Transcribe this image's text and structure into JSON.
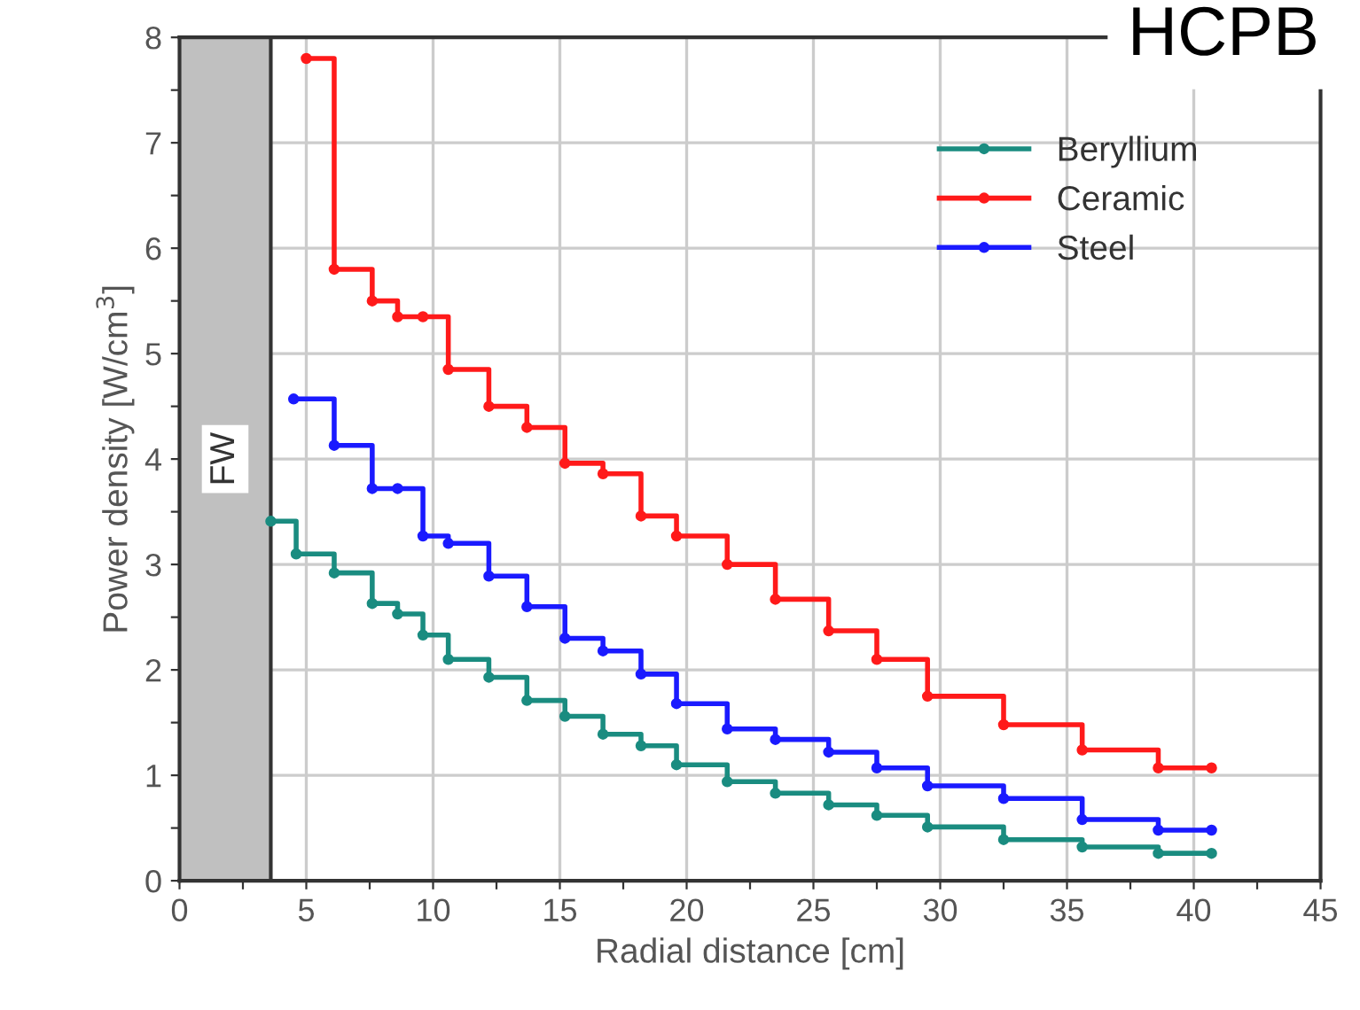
{
  "chart_data": {
    "type": "step",
    "title": "HCPB",
    "xlabel": "Radial distance [cm]",
    "ylabel": "Power density [W/cm$^{3}$]",
    "series": [
      {
        "name": "Beryllium",
        "color": "#1a8c80",
        "x": [
          3.6,
          4.6,
          6.1,
          7.6,
          8.6,
          9.6,
          10.6,
          12.2,
          13.7,
          15.2,
          16.7,
          18.2,
          19.6,
          21.6,
          23.5,
          25.6,
          27.5,
          29.5,
          32.5,
          35.6,
          38.6,
          40.7
        ],
        "values": [
          3.41,
          3.1,
          2.92,
          2.63,
          2.53,
          2.33,
          2.1,
          1.93,
          1.71,
          1.56,
          1.39,
          1.28,
          1.1,
          0.94,
          0.83,
          0.72,
          0.62,
          0.51,
          0.39,
          0.32,
          0.26,
          0.26
        ]
      },
      {
        "name": "Ceramic",
        "color": "#ff1a1a",
        "x": [
          5.0,
          6.1,
          7.6,
          8.6,
          9.6,
          10.6,
          12.2,
          13.7,
          15.2,
          16.7,
          18.2,
          19.6,
          21.6,
          23.5,
          25.6,
          27.5,
          29.5,
          32.5,
          35.6,
          38.6,
          40.7
        ],
        "values": [
          7.8,
          5.8,
          5.5,
          5.35,
          5.35,
          4.85,
          4.5,
          4.3,
          3.96,
          3.86,
          3.46,
          3.27,
          3.0,
          2.67,
          2.37,
          2.1,
          1.75,
          1.48,
          1.24,
          1.07,
          1.07
        ]
      },
      {
        "name": "Steel",
        "color": "#1a1aff",
        "x": [
          4.5,
          6.1,
          7.6,
          8.6,
          9.6,
          10.6,
          12.2,
          13.7,
          15.2,
          16.7,
          18.2,
          19.6,
          21.6,
          23.5,
          25.6,
          27.5,
          29.5,
          32.5,
          35.6,
          38.6,
          40.7
        ],
        "values": [
          4.57,
          4.13,
          3.72,
          3.72,
          3.27,
          3.2,
          2.89,
          2.6,
          2.3,
          2.18,
          1.96,
          1.68,
          1.44,
          1.34,
          1.22,
          1.07,
          0.9,
          0.78,
          0.58,
          0.48,
          0.48
        ]
      }
    ],
    "xlim": [
      0,
      45
    ],
    "xticks": [
      0,
      {
        "value": 2.5,
        "label": null
      },
      5,
      {
        "value": 7.5,
        "label": null
      },
      10,
      {
        "value": 12.5,
        "label": null
      },
      15,
      {
        "value": 17.5,
        "label": null
      },
      20,
      {
        "value": 22.5,
        "label": null
      },
      25,
      {
        "value": 27.5,
        "label": null
      },
      30,
      {
        "value": 32.5,
        "label": null
      },
      35,
      {
        "value": 37.5,
        "label": null
      },
      40,
      {
        "value": 42.5,
        "label": null
      },
      45
    ],
    "ylim": [
      0,
      8
    ],
    "yticks": [
      0,
      {
        "value": 0.5,
        "label": null
      },
      1,
      {
        "value": 1.5,
        "label": null
      },
      2,
      {
        "value": 2.5,
        "label": null
      },
      3,
      {
        "value": 3.5,
        "label": null
      },
      4,
      {
        "value": 4.5,
        "label": null
      },
      5,
      {
        "value": 5.5,
        "label": null
      },
      6,
      {
        "value": 6.5,
        "label": null
      },
      7,
      {
        "value": 7.5,
        "label": null
      },
      8
    ],
    "bands": [
      {
        "axis": "x",
        "from": 0,
        "to": 3.6,
        "label": "FW",
        "color": "#c0c0c0"
      }
    ],
    "ref_lines": [
      {
        "axis": "x",
        "value": 3.6,
        "color": "#333333"
      }
    ],
    "grid": true,
    "legend": "top right",
    "marker": "circle",
    "line_style": "solid"
  }
}
